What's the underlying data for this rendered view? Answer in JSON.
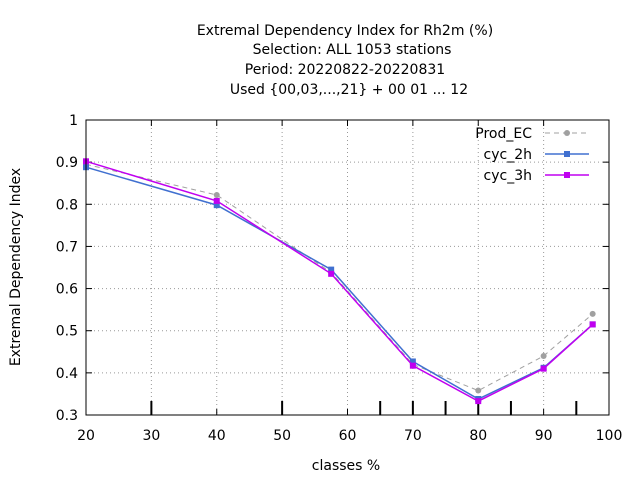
{
  "chart_data": {
    "type": "line",
    "title_lines": [
      "Extremal Dependency Index  for Rh2m (%)",
      "Selection: ALL    1053 stations",
      "Period: 20220822-20220831",
      "Used {00,03,...,21} + 00 01 ... 12"
    ],
    "xlabel": "classes %",
    "ylabel": "Extremal Dependency Index",
    "xlim": [
      20,
      100
    ],
    "ylim": [
      0.3,
      1.0
    ],
    "xticks": [
      20,
      30,
      40,
      50,
      60,
      70,
      80,
      90,
      100
    ],
    "yticks": [
      0.3,
      0.4,
      0.5,
      0.6,
      0.7,
      0.8,
      0.9,
      1.0
    ],
    "ytick_labels": [
      "0.3",
      "0.4",
      "0.5",
      "0.6",
      "0.7",
      "0.8",
      "0.9",
      "1"
    ],
    "grid": true,
    "legend_position": "top-right",
    "extra_minor_ticks_x": [
      65,
      75,
      85,
      95
    ],
    "series": [
      {
        "name": "Prod_EC",
        "color": "#a0a0a0",
        "dashed": true,
        "marker": "circle",
        "x": [
          20,
          40,
          57.5,
          70,
          80,
          90,
          97.5
        ],
        "y": [
          0.895,
          0.822,
          0.638,
          0.42,
          0.358,
          0.44,
          0.54
        ]
      },
      {
        "name": "cyc_2h",
        "color": "#4070d0",
        "dashed": false,
        "marker": "square",
        "x": [
          20,
          40,
          57.5,
          70,
          80,
          90,
          97.5
        ],
        "y": [
          0.888,
          0.798,
          0.645,
          0.427,
          0.338,
          0.412,
          0.515
        ]
      },
      {
        "name": "cyc_3h",
        "color": "#c000f0",
        "dashed": false,
        "marker": "square",
        "x": [
          20,
          40,
          57.5,
          70,
          80,
          90,
          97.5
        ],
        "y": [
          0.902,
          0.808,
          0.635,
          0.417,
          0.333,
          0.41,
          0.515
        ]
      }
    ]
  }
}
